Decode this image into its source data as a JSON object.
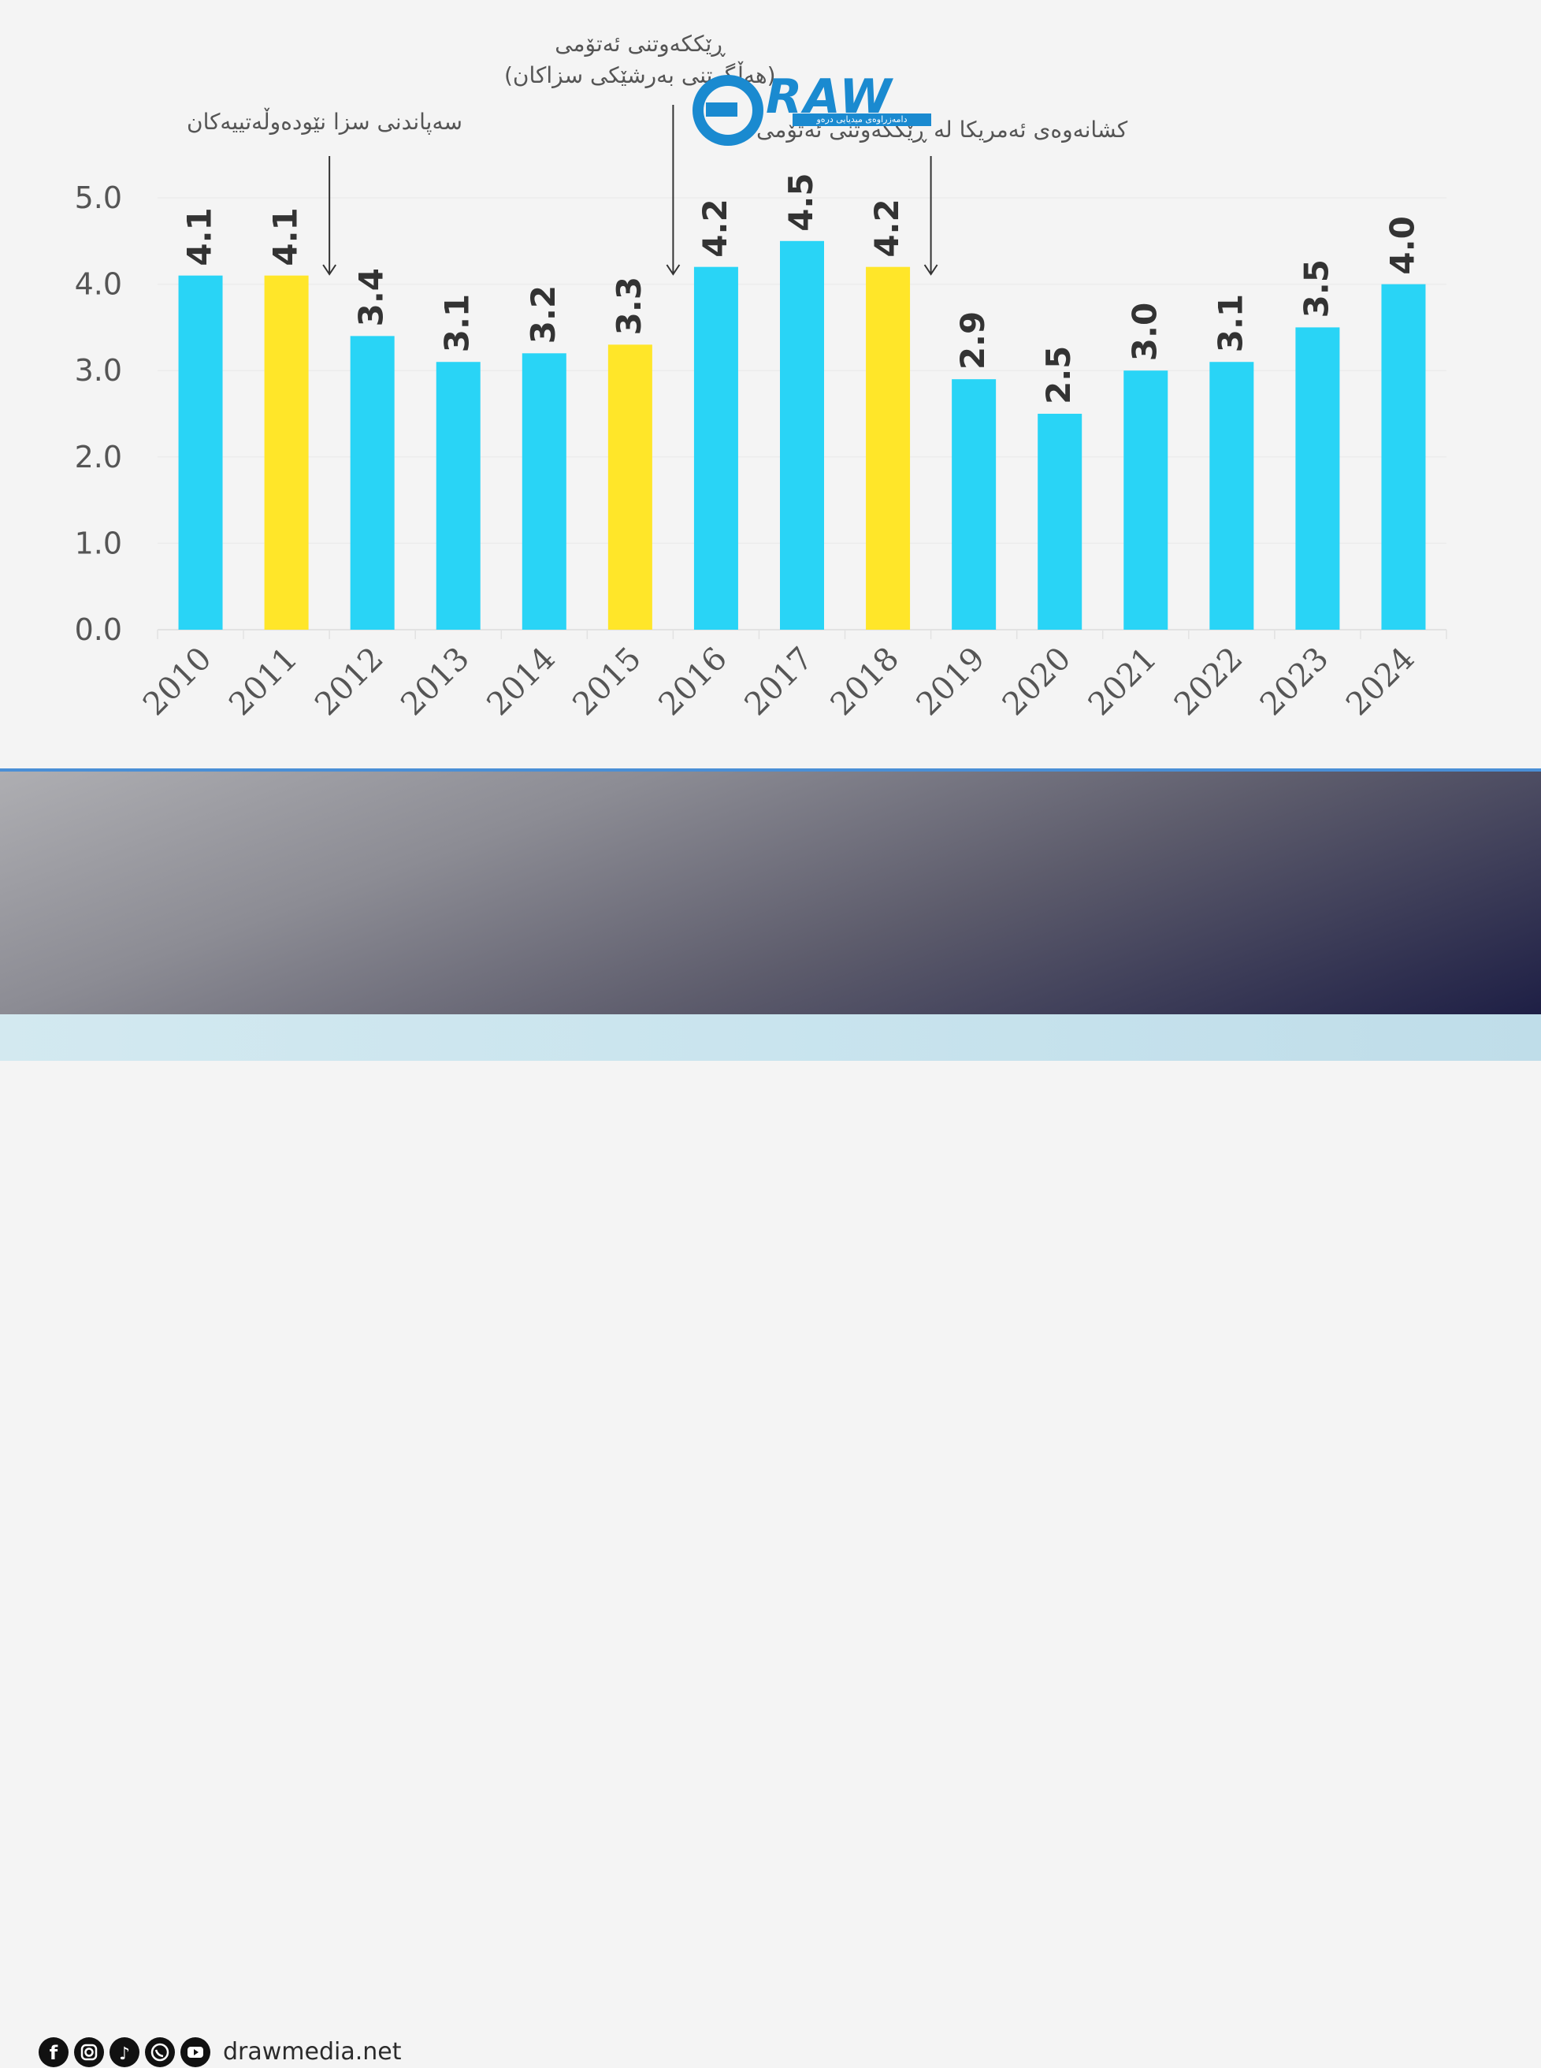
{
  "chart_data": {
    "type": "bar",
    "categories": [
      "2010",
      "2011",
      "2012",
      "2013",
      "2014",
      "2015",
      "2016",
      "2017",
      "2018",
      "2019",
      "2020",
      "2021",
      "2022",
      "2023",
      "2024"
    ],
    "values": [
      4.1,
      4.1,
      3.4,
      3.1,
      3.2,
      3.3,
      4.2,
      4.5,
      4.2,
      2.9,
      2.5,
      3.0,
      3.1,
      3.5,
      4.0
    ],
    "data_labels": [
      "4.1",
      "4.1",
      "3.4",
      "3.1",
      "3.2",
      "3.3",
      "4.2",
      "4.5",
      "4.2",
      "2.9",
      "2.5",
      "3.0",
      "3.1",
      "3.5",
      "4.0"
    ],
    "highlighted": [
      "2011",
      "2015",
      "2018"
    ],
    "ylim": [
      0,
      5
    ],
    "yticks": [
      "0.0",
      "1.0",
      "2.0",
      "3.0",
      "4.0",
      "5.0"
    ],
    "grid": true,
    "colors": {
      "bar": "#29d4f6",
      "highlight": "#ffe629",
      "axis_text": "#555555",
      "label_text": "#333333"
    },
    "annotations": [
      {
        "text": "سەپاندنی سزا نێودەوڵەتییەکان",
        "year": "2011"
      },
      {
        "text_line1": "ڕێککەوتنی ئەتۆمی",
        "text_line2": "(هەڵگرتنی بەرشێکی سزاکان)",
        "year": "2015"
      },
      {
        "text": "کشانەوەی ئەمریکا لە ڕێککەوتنی ئەتۆمی",
        "year": "2018"
      }
    ]
  },
  "logo": {
    "text": "RAW",
    "tagline": "دامەزراوەی میدیایی درەو"
  },
  "footer": {
    "icons": [
      "facebook-icon",
      "instagram-icon",
      "tiktok-icon",
      "whatsapp-icon",
      "youtube-icon"
    ],
    "url": "drawmedia.net"
  }
}
